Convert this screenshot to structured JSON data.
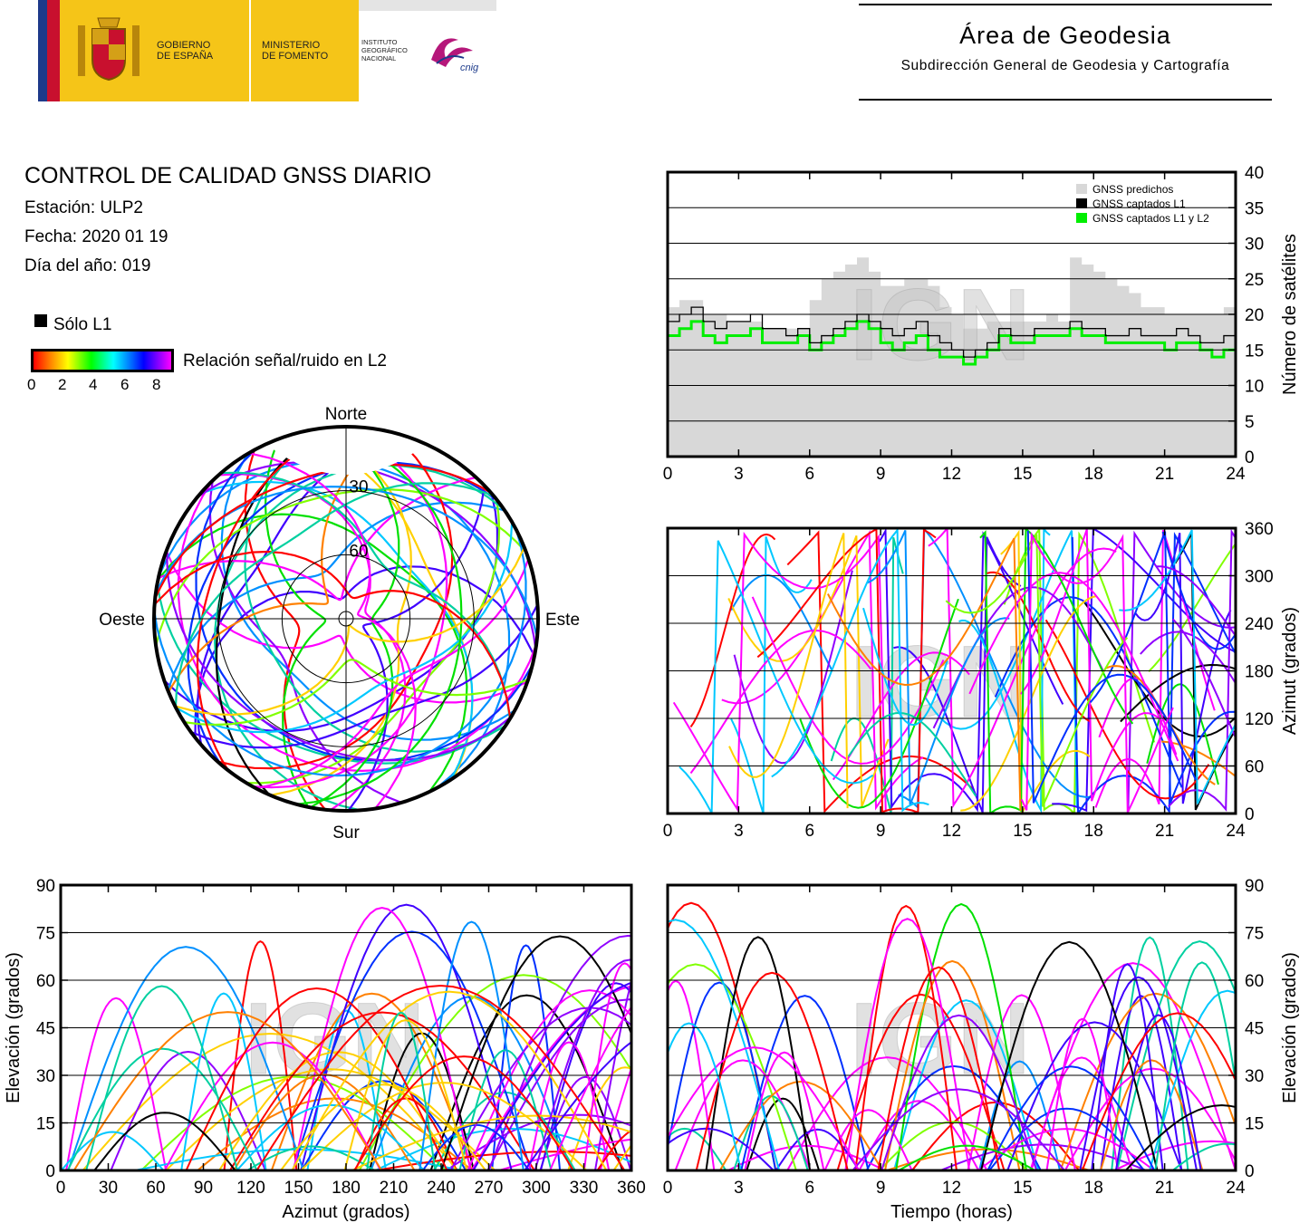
{
  "header": {
    "logo_gobierno": [
      "GOBIERNO",
      "DE ESPAÑA"
    ],
    "logo_ministerio": [
      "MINISTERIO",
      "DE FOMENTO"
    ],
    "logo_ign": [
      "INSTITUTO",
      "GEOGRÁFICO",
      "NACIONAL"
    ],
    "logo_cnig": "cnig",
    "title": "Área de Geodesia",
    "subtitle": "Subdirección General de Geodesia y Cartografía"
  },
  "report": {
    "title": "CONTROL DE CALIDAD GNSS DIARIO",
    "station": "Estación: ULP2",
    "date": "Fecha: 2020 01 19",
    "doy": "Día del año: 019",
    "only_l1_label": "Sólo L1",
    "colorbar_label": "Relación señal/ruido en L2",
    "colorbar_ticks": [
      "0",
      "2",
      "4",
      "6",
      "8"
    ],
    "colors": {
      "predicted": "#d8d8d8",
      "l1": "#000000",
      "l1l2": "#00ee00"
    }
  },
  "watermark": "IGN",
  "chart_data": [
    {
      "id": "satellites",
      "type": "area",
      "xlabel": "",
      "ylabel": "Número de satélites",
      "xlim": [
        0,
        24
      ],
      "ylim": [
        0,
        40
      ],
      "xticks": [
        "0",
        "3",
        "6",
        "9",
        "12",
        "15",
        "18",
        "21",
        "24"
      ],
      "yticks": [
        "0",
        "5",
        "10",
        "15",
        "20",
        "25",
        "30",
        "35",
        "40"
      ],
      "grid": true,
      "legend_position": "top-right",
      "x": [
        0,
        0.5,
        1,
        1.5,
        2,
        2.5,
        3,
        3.5,
        4,
        4.5,
        5,
        5.5,
        6,
        6.5,
        7,
        7.5,
        8,
        8.5,
        9,
        9.5,
        10,
        10.5,
        11,
        11.5,
        12,
        12.5,
        13,
        13.5,
        14,
        14.5,
        15,
        15.5,
        16,
        16.5,
        17,
        17.5,
        18,
        18.5,
        19,
        19.5,
        20,
        20.5,
        21,
        21.5,
        22,
        22.5,
        23,
        23.5,
        24
      ],
      "series": [
        {
          "name": "GNSS predichos",
          "values": [
            21,
            22,
            22,
            20,
            20,
            19,
            19,
            19,
            18,
            18,
            18,
            18,
            22,
            25,
            26,
            27,
            28,
            26,
            24,
            24,
            25,
            25,
            24,
            21,
            20,
            18,
            18,
            19,
            19,
            19,
            19,
            19,
            20,
            19,
            28,
            27,
            26,
            25,
            24,
            23,
            21,
            21,
            20,
            20,
            20,
            20,
            20,
            21,
            21
          ]
        },
        {
          "name": "GNSS captados L1",
          "values": [
            19,
            20,
            21,
            19,
            18,
            19,
            19,
            20,
            18,
            18,
            17,
            18,
            16,
            17,
            18,
            19,
            20,
            19,
            18,
            17,
            18,
            19,
            17,
            16,
            15,
            14,
            15,
            16,
            18,
            17,
            17,
            18,
            18,
            18,
            19,
            18,
            18,
            17,
            17,
            18,
            17,
            17,
            17,
            18,
            17,
            16,
            16,
            17,
            19
          ]
        },
        {
          "name": "GNSS captados L1 y L2",
          "values": [
            17,
            18,
            19,
            17,
            16,
            17,
            17,
            18,
            16,
            16,
            16,
            17,
            15,
            16,
            17,
            18,
            19,
            18,
            16,
            15,
            16,
            17,
            15,
            14,
            14,
            13,
            14,
            15,
            17,
            16,
            16,
            17,
            17,
            17,
            18,
            17,
            17,
            16,
            16,
            16,
            16,
            16,
            15,
            16,
            16,
            15,
            14,
            15,
            17
          ]
        }
      ]
    },
    {
      "id": "skyplot",
      "type": "scatter",
      "projection": "polar",
      "labels": {
        "north": "Norte",
        "south": "Sur",
        "east": "Este",
        "west": "Oeste"
      },
      "rings": [
        "30",
        "60"
      ]
    },
    {
      "id": "azimuth_time",
      "type": "scatter",
      "xlabel": "",
      "ylabel": "Azimut (grados)",
      "xlim": [
        0,
        24
      ],
      "ylim": [
        0,
        360
      ],
      "xticks": [
        "0",
        "3",
        "6",
        "9",
        "12",
        "15",
        "18",
        "21",
        "24"
      ],
      "yticks": [
        "0",
        "60",
        "120",
        "180",
        "240",
        "300",
        "360"
      ],
      "grid": true
    },
    {
      "id": "elevation_azimuth",
      "type": "scatter",
      "xlabel": "Azimut (grados)",
      "ylabel": "Elevación (grados)",
      "xlim": [
        0,
        360
      ],
      "ylim": [
        0,
        90
      ],
      "xticks": [
        "0",
        "30",
        "60",
        "90",
        "120",
        "150",
        "180",
        "210",
        "240",
        "270",
        "300",
        "330",
        "360"
      ],
      "yticks": [
        "0",
        "15",
        "30",
        "45",
        "60",
        "75",
        "90"
      ],
      "grid": true
    },
    {
      "id": "elevation_time",
      "type": "scatter",
      "xlabel": "Tiempo (horas)",
      "ylabel": "Elevación (grados)",
      "xlim": [
        0,
        24
      ],
      "ylim": [
        0,
        90
      ],
      "xticks": [
        "0",
        "3",
        "6",
        "9",
        "12",
        "15",
        "18",
        "21",
        "24"
      ],
      "yticks": [
        "0",
        "15",
        "30",
        "45",
        "60",
        "75",
        "90"
      ],
      "grid": true
    }
  ]
}
